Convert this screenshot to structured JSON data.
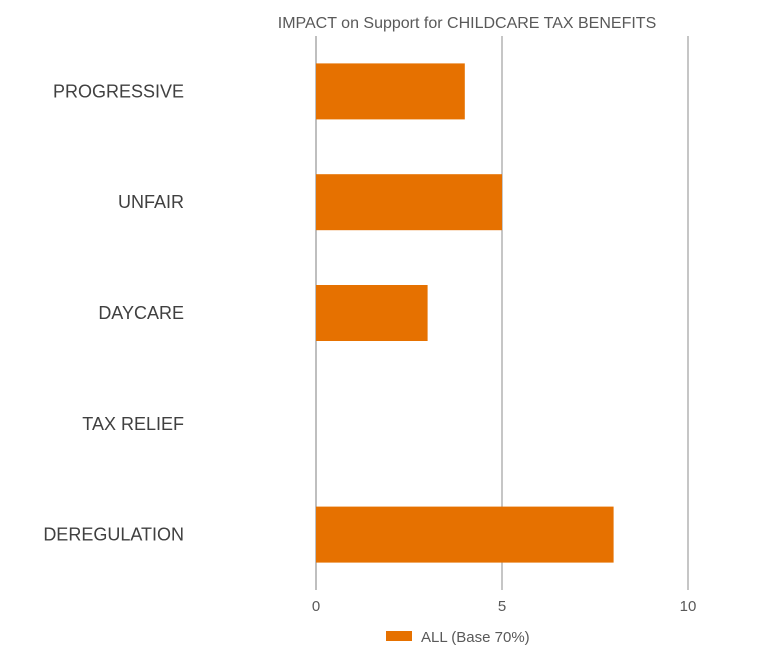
{
  "chart_data": {
    "type": "bar",
    "orientation": "horizontal",
    "title": "IMPACT on Support for CHILDCARE TAX BENEFITS",
    "categories": [
      "PROGRESSIVE",
      "UNFAIR",
      "DAYCARE",
      "TAX RELIEF",
      "DEREGULATION"
    ],
    "series": [
      {
        "name": "ALL (Base 70%)",
        "values": [
          4,
          5,
          3,
          0,
          8
        ],
        "color": "#E67100"
      }
    ],
    "xlim": [
      0,
      10
    ],
    "xticks": [
      "0",
      "5",
      "10"
    ],
    "grid": "vertical",
    "legend": "bottom"
  }
}
